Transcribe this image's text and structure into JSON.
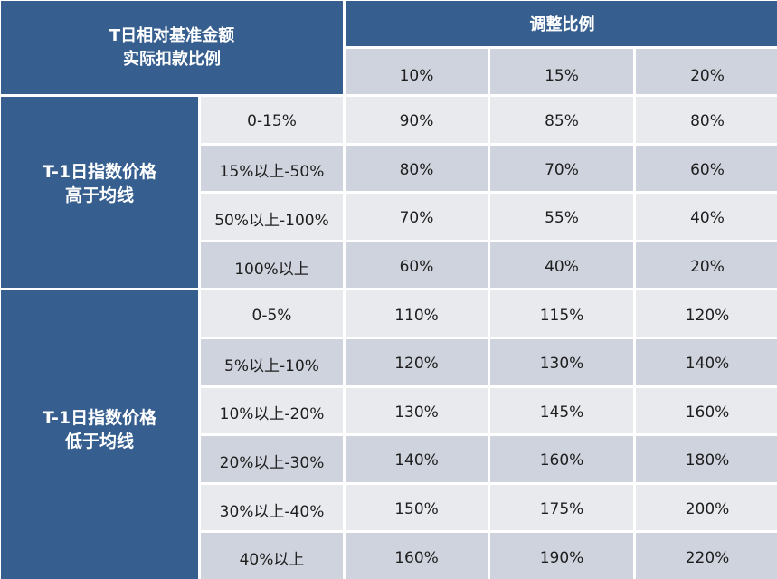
{
  "header": {
    "corner_line1": "T日相对基准金额",
    "corner_line2": "实际扣款比例",
    "adjust_title": "调整比例",
    "adjust_columns": [
      "10%",
      "15%",
      "20%"
    ]
  },
  "groups": [
    {
      "label_line1": "T-1日指数价格",
      "label_line2": "高于均线",
      "rows": [
        {
          "range": "0-15%",
          "values": [
            "90%",
            "85%",
            "80%"
          ]
        },
        {
          "range": "15%以上-50%",
          "values": [
            "80%",
            "70%",
            "60%"
          ]
        },
        {
          "range": "50%以上-100%",
          "values": [
            "70%",
            "55%",
            "40%"
          ]
        },
        {
          "range": "100%以上",
          "values": [
            "60%",
            "40%",
            "20%"
          ]
        }
      ]
    },
    {
      "label_line1": "T-1日指数价格",
      "label_line2": "低于均线",
      "rows": [
        {
          "range": "0-5%",
          "values": [
            "110%",
            "115%",
            "120%"
          ]
        },
        {
          "range": "5%以上-10%",
          "values": [
            "120%",
            "130%",
            "140%"
          ]
        },
        {
          "range": "10%以上-20%",
          "values": [
            "130%",
            "145%",
            "160%"
          ]
        },
        {
          "range": "20%以上-30%",
          "values": [
            "140%",
            "160%",
            "180%"
          ]
        },
        {
          "range": "30%以上-40%",
          "values": [
            "150%",
            "175%",
            "200%"
          ]
        },
        {
          "range": "40%以上",
          "values": [
            "160%",
            "190%",
            "220%"
          ]
        }
      ]
    }
  ],
  "colors": {
    "header_blue": "#365f8f",
    "row_light": "#e9eaee",
    "row_dark": "#cfd3dd"
  }
}
